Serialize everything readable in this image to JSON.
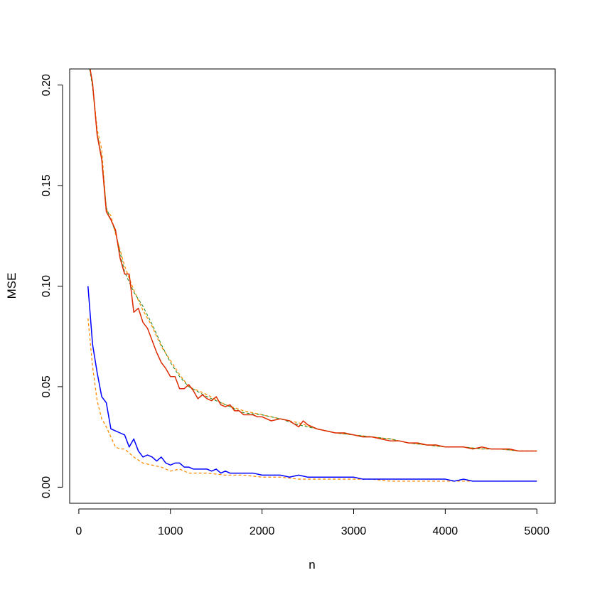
{
  "chart_data": {
    "type": "line",
    "title": "",
    "xlabel": "n",
    "ylabel": "MSE",
    "xlim": [
      -100,
      5200
    ],
    "ylim": [
      -0.008,
      0.208
    ],
    "x_ticks": [
      0,
      1000,
      2000,
      3000,
      4000,
      5000
    ],
    "x_tick_labels": [
      "0",
      "1000",
      "2000",
      "3000",
      "4000",
      "5000"
    ],
    "y_ticks": [
      0.0,
      0.05,
      0.1,
      0.15,
      0.2
    ],
    "y_tick_labels": [
      "0.00",
      "0.05",
      "0.10",
      "0.15",
      "0.20"
    ],
    "grid": false,
    "legend": "none",
    "series": [
      {
        "color": "#ff8c00",
        "dash": "dashed",
        "width": 1.3,
        "x": [
          100,
          150,
          200,
          250,
          300,
          350,
          400,
          500,
          600,
          700,
          800,
          900,
          1000,
          1100,
          1200,
          1400,
          1600,
          1800,
          2000,
          2200,
          2400,
          2600,
          2800,
          3000,
          3200,
          3400,
          3600,
          3800,
          4000,
          4200,
          4400,
          4600,
          4800,
          5000
        ],
        "y": [
          0.214,
          0.2,
          0.178,
          0.168,
          0.138,
          0.135,
          0.126,
          0.11,
          0.098,
          0.088,
          0.08,
          0.07,
          0.063,
          0.056,
          0.05,
          0.046,
          0.041,
          0.038,
          0.036,
          0.034,
          0.032,
          0.029,
          0.027,
          0.026,
          0.025,
          0.024,
          0.022,
          0.021,
          0.02,
          0.02,
          0.019,
          0.019,
          0.018,
          0.018
        ]
      },
      {
        "color": "#228b22",
        "dash": "dashed",
        "width": 1.1,
        "x": [
          100,
          150,
          200,
          250,
          300,
          350,
          400,
          500,
          600,
          700,
          800,
          900,
          1000,
          1100,
          1200,
          1400,
          1600,
          1800,
          2000,
          2200,
          2400,
          2600,
          2800,
          3000,
          3200,
          3400,
          3600,
          3800,
          4000,
          4200,
          4400,
          4600,
          4800,
          5000
        ],
        "y": [
          0.213,
          0.199,
          0.176,
          0.164,
          0.139,
          0.133,
          0.127,
          0.107,
          0.097,
          0.09,
          0.081,
          0.071,
          0.062,
          0.055,
          0.05,
          0.045,
          0.041,
          0.037,
          0.036,
          0.034,
          0.031,
          0.029,
          0.027,
          0.026,
          0.025,
          0.024,
          0.022,
          0.021,
          0.02,
          0.02,
          0.019,
          0.019,
          0.018,
          0.018
        ]
      },
      {
        "color": "#dd2a00",
        "dash": "solid",
        "width": 1.5,
        "x": [
          100,
          150,
          200,
          250,
          300,
          350,
          400,
          450,
          500,
          550,
          600,
          650,
          700,
          750,
          800,
          850,
          900,
          950,
          1000,
          1050,
          1100,
          1150,
          1200,
          1250,
          1300,
          1350,
          1400,
          1450,
          1500,
          1550,
          1600,
          1650,
          1700,
          1750,
          1800,
          1850,
          1900,
          1950,
          2000,
          2100,
          2200,
          2300,
          2400,
          2450,
          2500,
          2600,
          2700,
          2800,
          2900,
          3000,
          3100,
          3200,
          3300,
          3400,
          3500,
          3600,
          3700,
          3800,
          3900,
          4000,
          4100,
          4200,
          4300,
          4400,
          4500,
          4600,
          4700,
          4800,
          4900,
          5000
        ],
        "y": [
          0.214,
          0.201,
          0.175,
          0.163,
          0.137,
          0.133,
          0.128,
          0.114,
          0.106,
          0.106,
          0.087,
          0.089,
          0.082,
          0.079,
          0.073,
          0.067,
          0.062,
          0.059,
          0.055,
          0.055,
          0.049,
          0.049,
          0.051,
          0.048,
          0.044,
          0.046,
          0.044,
          0.043,
          0.045,
          0.041,
          0.04,
          0.041,
          0.038,
          0.038,
          0.036,
          0.036,
          0.036,
          0.035,
          0.035,
          0.033,
          0.034,
          0.033,
          0.03,
          0.033,
          0.031,
          0.029,
          0.028,
          0.027,
          0.027,
          0.026,
          0.025,
          0.025,
          0.024,
          0.023,
          0.023,
          0.022,
          0.022,
          0.021,
          0.021,
          0.02,
          0.02,
          0.02,
          0.019,
          0.02,
          0.019,
          0.019,
          0.019,
          0.018,
          0.018,
          0.018
        ]
      },
      {
        "color": "#ff8c00",
        "dash": "dashed",
        "width": 1.3,
        "x": [
          100,
          150,
          200,
          250,
          300,
          350,
          400,
          450,
          500,
          550,
          600,
          700,
          800,
          900,
          1000,
          1100,
          1200,
          1400,
          1600,
          1800,
          2000,
          2200,
          2400,
          2600,
          2800,
          3000,
          3200,
          3400,
          3600,
          3800,
          4000,
          4200,
          4400,
          4600,
          4800,
          5000
        ],
        "y": [
          0.084,
          0.06,
          0.043,
          0.034,
          0.03,
          0.025,
          0.02,
          0.019,
          0.019,
          0.017,
          0.015,
          0.012,
          0.011,
          0.01,
          0.008,
          0.009,
          0.007,
          0.007,
          0.006,
          0.006,
          0.005,
          0.005,
          0.004,
          0.004,
          0.004,
          0.004,
          0.004,
          0.003,
          0.003,
          0.003,
          0.003,
          0.003,
          0.003,
          0.003,
          0.003,
          0.003
        ]
      },
      {
        "color": "#0000ff",
        "dash": "solid",
        "width": 1.5,
        "x": [
          100,
          150,
          200,
          250,
          300,
          350,
          400,
          450,
          500,
          550,
          600,
          650,
          700,
          750,
          800,
          850,
          900,
          950,
          1000,
          1050,
          1100,
          1150,
          1200,
          1250,
          1300,
          1350,
          1400,
          1450,
          1500,
          1550,
          1600,
          1650,
          1700,
          1800,
          1900,
          2000,
          2100,
          2200,
          2300,
          2400,
          2500,
          2600,
          2700,
          2800,
          2900,
          3000,
          3100,
          3200,
          3300,
          3400,
          3500,
          3600,
          3700,
          3800,
          3900,
          4000,
          4100,
          4200,
          4300,
          4400,
          4500,
          4600,
          4700,
          4800,
          4900,
          5000
        ],
        "y": [
          0.1,
          0.071,
          0.057,
          0.045,
          0.042,
          0.029,
          0.028,
          0.027,
          0.026,
          0.02,
          0.024,
          0.018,
          0.015,
          0.016,
          0.015,
          0.013,
          0.015,
          0.012,
          0.011,
          0.012,
          0.012,
          0.01,
          0.01,
          0.009,
          0.009,
          0.009,
          0.009,
          0.008,
          0.009,
          0.007,
          0.008,
          0.007,
          0.007,
          0.007,
          0.007,
          0.006,
          0.006,
          0.006,
          0.005,
          0.006,
          0.005,
          0.005,
          0.005,
          0.005,
          0.005,
          0.005,
          0.004,
          0.004,
          0.004,
          0.004,
          0.004,
          0.004,
          0.004,
          0.004,
          0.004,
          0.004,
          0.003,
          0.004,
          0.003,
          0.003,
          0.003,
          0.003,
          0.003,
          0.003,
          0.003,
          0.003
        ]
      }
    ]
  }
}
